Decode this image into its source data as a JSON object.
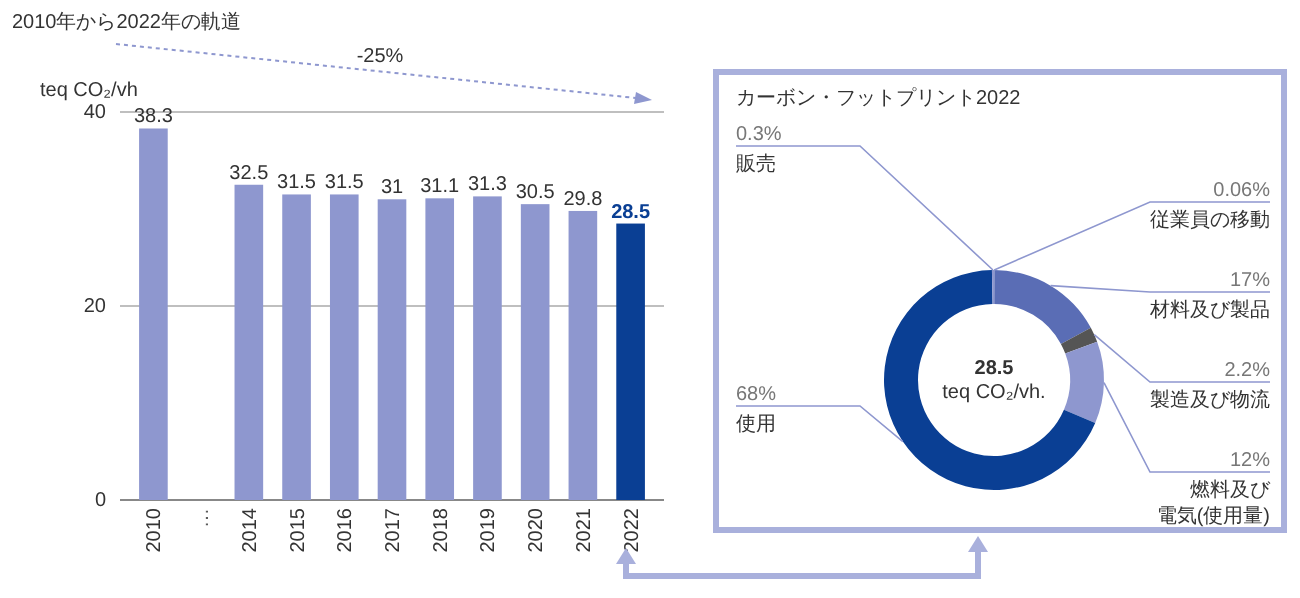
{
  "chart_data": [
    {
      "type": "bar",
      "title": "2010年から2022年の軌道",
      "ylabel": "teq CO₂/vh",
      "categories": [
        "2010",
        "…",
        "2014",
        "2015",
        "2016",
        "2017",
        "2018",
        "2019",
        "2020",
        "2021",
        "2022"
      ],
      "values": [
        38.3,
        null,
        32.5,
        31.5,
        31.5,
        31,
        31.1,
        31.3,
        30.5,
        29.8,
        28.5
      ],
      "colors": [
        "#8e97cf",
        null,
        "#8e97cf",
        "#8e97cf",
        "#8e97cf",
        "#8e97cf",
        "#8e97cf",
        "#8e97cf",
        "#8e97cf",
        "#8e97cf",
        "#0a3f94"
      ],
      "ylim": [
        0,
        40
      ],
      "yticks": [
        0,
        20,
        40
      ],
      "grid": "y",
      "data_labels": true,
      "annotations": [
        "-25%"
      ]
    },
    {
      "type": "donut",
      "title": "カーボン・フットプリント2022",
      "categories": [
        "従業員の移動",
        "材料及び製品",
        "製造及び物流",
        "燃料及び電気(使用量)",
        "使用",
        "販売"
      ],
      "values": [
        0.06,
        17,
        2.2,
        12,
        68,
        0.3
      ],
      "value_labels": [
        "0.06%",
        "17%",
        "2.2%",
        "12%",
        "68%",
        "0.3%"
      ],
      "colors": [
        "#8e97cf",
        "#5a6db5",
        "#555555",
        "#8e97cf",
        "#0a3f94",
        "#8e97cf"
      ],
      "annotations": [
        "28.5",
        "teq CO₂/vh."
      ]
    }
  ]
}
